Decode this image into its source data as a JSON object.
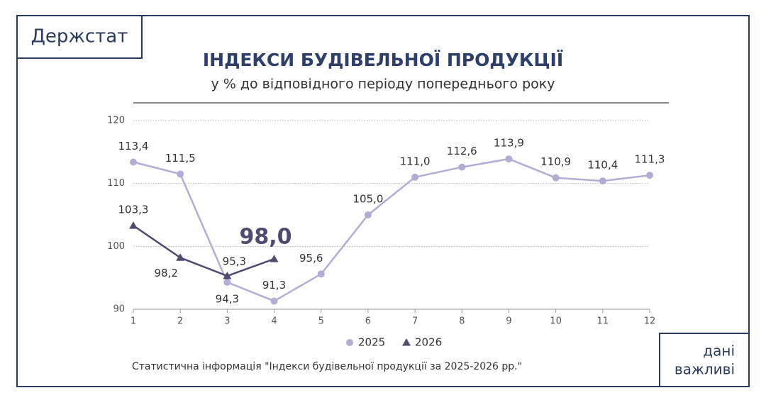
{
  "header": {
    "brand": "Держстат"
  },
  "footer": {
    "tagline": [
      "дані",
      "важливі"
    ],
    "source": "Статистична інформація \"Індекси будівельної продукції за 2025-2026 рр.\""
  },
  "chart_data": {
    "type": "line",
    "title": "ІНДЕКСИ БУДІВЕЛЬНОЇ ПРОДУКЦІЇ",
    "subtitle": "у % до відповідного періоду попереднього року",
    "x": [
      1,
      2,
      3,
      4,
      5,
      6,
      7,
      8,
      9,
      10,
      11,
      12
    ],
    "xlim": [
      1,
      12
    ],
    "xticks": [
      1,
      2,
      3,
      4,
      5,
      6,
      7,
      8,
      9,
      10,
      11,
      12
    ],
    "ylim": [
      90,
      120
    ],
    "yticks": [
      90,
      100,
      110,
      120
    ],
    "grid": true,
    "series": [
      {
        "name": "2025",
        "color": "#b3add6",
        "marker": "circle",
        "values": [
          113.4,
          111.5,
          94.3,
          91.3,
          95.6,
          105.0,
          111.0,
          112.6,
          113.9,
          110.9,
          110.4,
          111.3
        ],
        "value_labels": [
          "113,4",
          "111,5",
          "94,3",
          "91,3",
          "95,6",
          "105,0",
          "111,0",
          "112,6",
          "113,9",
          "110,9",
          "110,4",
          "111,3"
        ]
      },
      {
        "name": "2026",
        "color": "#4f4b70",
        "marker": "triangle",
        "values": [
          103.3,
          98.2,
          95.3,
          98.0,
          null,
          null,
          null,
          null,
          null,
          null,
          null,
          null
        ],
        "value_labels": [
          "103,3",
          "98,2",
          "95,3",
          "98,0",
          null,
          null,
          null,
          null,
          null,
          null,
          null,
          null
        ]
      }
    ]
  }
}
